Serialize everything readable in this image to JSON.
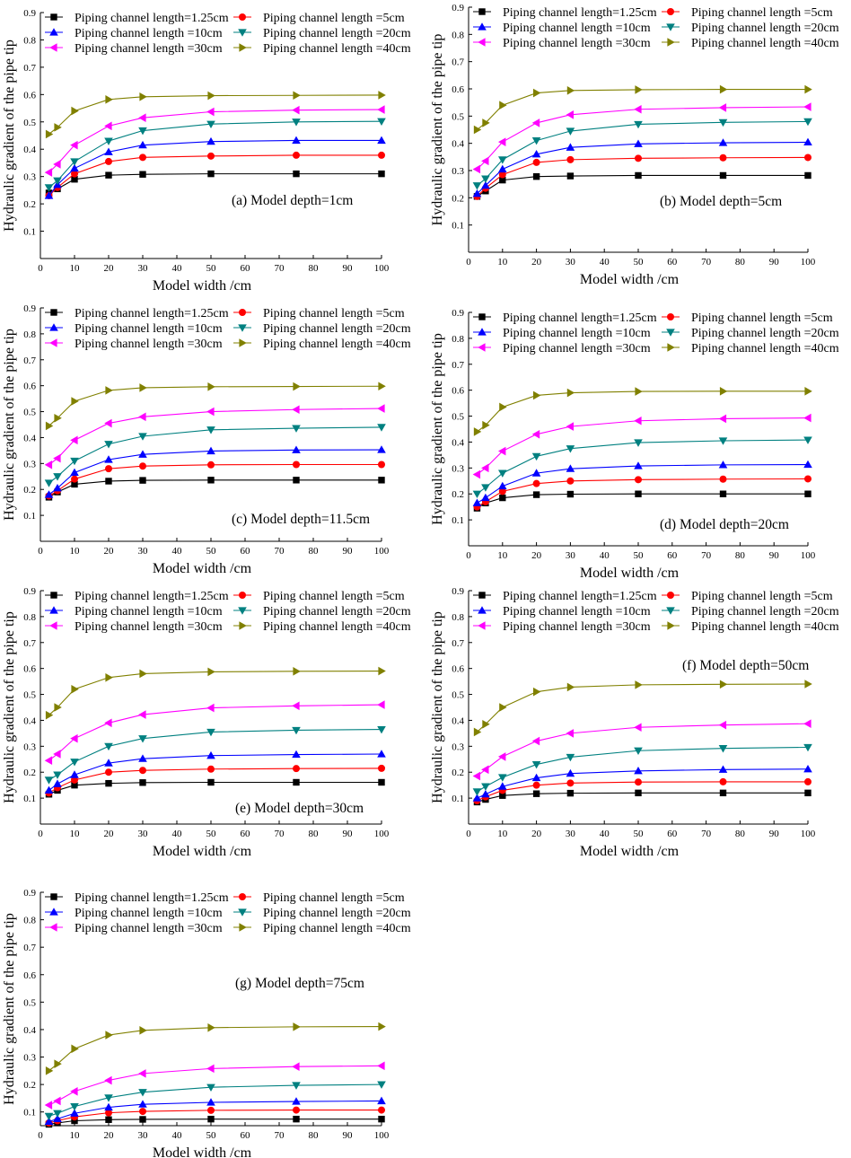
{
  "chart_data": [
    {
      "type": "line",
      "annotation": "(a) Model depth=1cm",
      "xlabel": "Model width /cm",
      "ylabel": "Hydraulic gradient of the pipe tip",
      "xlim": [
        0,
        100
      ],
      "ylim": [
        0,
        0.9
      ],
      "xticks": [
        "0",
        "10",
        "20",
        "30",
        "40",
        "50",
        "60",
        "70",
        "80",
        "90",
        "100"
      ],
      "yticks": [
        "0.1",
        "0.2",
        "0.3",
        "0.4",
        "0.5",
        "0.6",
        "0.7",
        "0.8",
        "0.9"
      ],
      "x": [
        2.5,
        5,
        10,
        20,
        30,
        50,
        75,
        100
      ],
      "series": [
        {
          "name": "Piping channel length=1.25cm",
          "values": [
            0.24,
            0.255,
            0.29,
            0.305,
            0.308,
            0.31,
            0.31,
            0.31
          ]
        },
        {
          "name": "Piping channel length =5cm",
          "values": [
            0.23,
            0.26,
            0.31,
            0.355,
            0.37,
            0.375,
            0.378,
            0.378
          ]
        },
        {
          "name": "Piping channel length =10cm",
          "values": [
            0.23,
            0.27,
            0.33,
            0.39,
            0.415,
            0.428,
            0.432,
            0.432
          ]
        },
        {
          "name": "Piping channel length =20cm",
          "values": [
            0.26,
            0.285,
            0.355,
            0.43,
            0.468,
            0.492,
            0.5,
            0.502
          ]
        },
        {
          "name": "Piping channel length =30cm",
          "values": [
            0.315,
            0.345,
            0.415,
            0.485,
            0.515,
            0.537,
            0.543,
            0.545
          ]
        },
        {
          "name": "Piping channel length =40cm",
          "values": [
            0.455,
            0.48,
            0.54,
            0.582,
            0.592,
            0.596,
            0.597,
            0.598
          ]
        }
      ]
    },
    {
      "type": "line",
      "annotation": "(b) Model depth=5cm",
      "xlabel": "Model width /cm",
      "ylabel": "Hydraulic gradient of the pipe tip",
      "xlim": [
        0,
        100
      ],
      "ylim": [
        0,
        0.9
      ],
      "xticks": [
        "0",
        "10",
        "20",
        "30",
        "40",
        "50",
        "60",
        "70",
        "80",
        "90",
        "100"
      ],
      "yticks": [
        "0.1",
        "0.2",
        "0.3",
        "0.4",
        "0.5",
        "0.6",
        "0.7",
        "0.8",
        "0.9"
      ],
      "x": [
        2.5,
        5,
        10,
        20,
        30,
        50,
        75,
        100
      ],
      "series": [
        {
          "name": "Piping channel length=1.25cm",
          "values": [
            0.205,
            0.225,
            0.265,
            0.278,
            0.28,
            0.282,
            0.282,
            0.282
          ]
        },
        {
          "name": "Piping channel length =5cm",
          "values": [
            0.205,
            0.235,
            0.285,
            0.33,
            0.34,
            0.345,
            0.347,
            0.348
          ]
        },
        {
          "name": "Piping channel length =10cm",
          "values": [
            0.215,
            0.245,
            0.305,
            0.36,
            0.385,
            0.398,
            0.402,
            0.404
          ]
        },
        {
          "name": "Piping channel length =20cm",
          "values": [
            0.245,
            0.27,
            0.34,
            0.41,
            0.445,
            0.47,
            0.477,
            0.48
          ]
        },
        {
          "name": "Piping channel length =30cm",
          "values": [
            0.305,
            0.335,
            0.405,
            0.475,
            0.505,
            0.525,
            0.531,
            0.534
          ]
        },
        {
          "name": "Piping channel length =40cm",
          "values": [
            0.45,
            0.475,
            0.54,
            0.585,
            0.594,
            0.597,
            0.598,
            0.598
          ]
        }
      ]
    },
    {
      "type": "line",
      "annotation": "(c) Model depth=11.5cm",
      "xlabel": "Model width /cm",
      "ylabel": "Hydraulic gradient of the pipe tip",
      "xlim": [
        0,
        100
      ],
      "ylim": [
        0,
        0.9
      ],
      "xticks": [
        "0",
        "10",
        "20",
        "30",
        "40",
        "50",
        "60",
        "70",
        "80",
        "90",
        "100"
      ],
      "yticks": [
        "0.1",
        "0.2",
        "0.3",
        "0.4",
        "0.5",
        "0.6",
        "0.7",
        "0.8",
        "0.9"
      ],
      "x": [
        2.5,
        5,
        10,
        20,
        30,
        50,
        75,
        100
      ],
      "series": [
        {
          "name": "Piping channel length=1.25cm",
          "values": [
            0.17,
            0.19,
            0.22,
            0.232,
            0.235,
            0.236,
            0.236,
            0.236
          ]
        },
        {
          "name": "Piping channel length =5cm",
          "values": [
            0.175,
            0.195,
            0.24,
            0.28,
            0.29,
            0.295,
            0.296,
            0.296
          ]
        },
        {
          "name": "Piping channel length =10cm",
          "values": [
            0.18,
            0.205,
            0.265,
            0.315,
            0.335,
            0.348,
            0.352,
            0.353
          ]
        },
        {
          "name": "Piping channel length =20cm",
          "values": [
            0.225,
            0.25,
            0.31,
            0.375,
            0.405,
            0.43,
            0.436,
            0.44
          ]
        },
        {
          "name": "Piping channel length =30cm",
          "values": [
            0.295,
            0.32,
            0.39,
            0.455,
            0.48,
            0.5,
            0.508,
            0.512
          ]
        },
        {
          "name": "Piping channel length =40cm",
          "values": [
            0.445,
            0.475,
            0.54,
            0.582,
            0.592,
            0.596,
            0.597,
            0.598
          ]
        }
      ]
    },
    {
      "type": "line",
      "annotation": "(d) Model depth=20cm",
      "xlabel": "Model width /cm",
      "ylabel": "Hydraulic gradient of the pipe tip",
      "xlim": [
        0,
        100
      ],
      "ylim": [
        0,
        0.9
      ],
      "xticks": [
        "0",
        "10",
        "20",
        "30",
        "40",
        "50",
        "60",
        "70",
        "80",
        "90",
        "100"
      ],
      "yticks": [
        "0.1",
        "0.2",
        "0.3",
        "0.4",
        "0.5",
        "0.6",
        "0.7",
        "0.8",
        "0.9"
      ],
      "x": [
        2.5,
        5,
        10,
        20,
        30,
        50,
        75,
        100
      ],
      "series": [
        {
          "name": "Piping channel length=1.25cm",
          "values": [
            0.145,
            0.165,
            0.185,
            0.197,
            0.199,
            0.2,
            0.2,
            0.2
          ]
        },
        {
          "name": "Piping channel length =5cm",
          "values": [
            0.15,
            0.17,
            0.21,
            0.24,
            0.25,
            0.255,
            0.257,
            0.258
          ]
        },
        {
          "name": "Piping channel length =10cm",
          "values": [
            0.165,
            0.185,
            0.23,
            0.28,
            0.297,
            0.308,
            0.312,
            0.313
          ]
        },
        {
          "name": "Piping channel length =20cm",
          "values": [
            0.2,
            0.225,
            0.28,
            0.345,
            0.375,
            0.398,
            0.405,
            0.408
          ]
        },
        {
          "name": "Piping channel length =30cm",
          "values": [
            0.275,
            0.3,
            0.365,
            0.43,
            0.46,
            0.482,
            0.49,
            0.493
          ]
        },
        {
          "name": "Piping channel length =40cm",
          "values": [
            0.44,
            0.465,
            0.535,
            0.58,
            0.59,
            0.595,
            0.596,
            0.596
          ]
        }
      ]
    },
    {
      "type": "line",
      "annotation": "(e) Model depth=30cm",
      "xlabel": "Model width /cm",
      "ylabel": "Hydraulic gradient of the pipe tip",
      "xlim": [
        0,
        100
      ],
      "ylim": [
        0,
        0.9
      ],
      "xticks": [
        "0",
        "10",
        "20",
        "30",
        "40",
        "50",
        "60",
        "70",
        "80",
        "90",
        "100"
      ],
      "yticks": [
        "0.1",
        "0.2",
        "0.3",
        "0.4",
        "0.5",
        "0.6",
        "0.7",
        "0.8",
        "0.9"
      ],
      "x": [
        2.5,
        5,
        10,
        20,
        30,
        50,
        75,
        100
      ],
      "series": [
        {
          "name": "Piping channel length=1.25cm",
          "values": [
            0.115,
            0.13,
            0.15,
            0.157,
            0.16,
            0.161,
            0.161,
            0.161
          ]
        },
        {
          "name": "Piping channel length =5cm",
          "values": [
            0.12,
            0.14,
            0.17,
            0.2,
            0.207,
            0.212,
            0.214,
            0.215
          ]
        },
        {
          "name": "Piping channel length =10cm",
          "values": [
            0.13,
            0.155,
            0.19,
            0.235,
            0.252,
            0.264,
            0.268,
            0.27
          ]
        },
        {
          "name": "Piping channel length =20cm",
          "values": [
            0.17,
            0.19,
            0.24,
            0.3,
            0.33,
            0.355,
            0.362,
            0.365
          ]
        },
        {
          "name": "Piping channel length =30cm",
          "values": [
            0.245,
            0.27,
            0.33,
            0.39,
            0.422,
            0.448,
            0.456,
            0.46
          ]
        },
        {
          "name": "Piping channel length =40cm",
          "values": [
            0.42,
            0.45,
            0.52,
            0.565,
            0.58,
            0.587,
            0.589,
            0.59
          ]
        }
      ]
    },
    {
      "type": "line",
      "annotation": "(f) Model depth=50cm",
      "xlabel": "Model width /cm",
      "ylabel": "Hydraulic gradient of the pipe tip",
      "xlim": [
        0,
        100
      ],
      "ylim": [
        0,
        0.9
      ],
      "xticks": [
        "0",
        "10",
        "20",
        "30",
        "40",
        "50",
        "60",
        "70",
        "80",
        "90",
        "100"
      ],
      "yticks": [
        "0.1",
        "0.2",
        "0.3",
        "0.4",
        "0.5",
        "0.6",
        "0.7",
        "0.8",
        "0.9"
      ],
      "x": [
        2.5,
        5,
        10,
        20,
        30,
        50,
        75,
        100
      ],
      "series": [
        {
          "name": "Piping channel length=1.25cm",
          "values": [
            0.085,
            0.095,
            0.11,
            0.117,
            0.119,
            0.12,
            0.12,
            0.12
          ]
        },
        {
          "name": "Piping channel length =5cm",
          "values": [
            0.09,
            0.105,
            0.13,
            0.15,
            0.158,
            0.162,
            0.163,
            0.163
          ]
        },
        {
          "name": "Piping channel length =10cm",
          "values": [
            0.1,
            0.115,
            0.145,
            0.178,
            0.195,
            0.205,
            0.21,
            0.212
          ]
        },
        {
          "name": "Piping channel length =20cm",
          "values": [
            0.125,
            0.145,
            0.18,
            0.23,
            0.258,
            0.283,
            0.292,
            0.296
          ]
        },
        {
          "name": "Piping channel length =30cm",
          "values": [
            0.185,
            0.21,
            0.26,
            0.32,
            0.35,
            0.373,
            0.382,
            0.387
          ]
        },
        {
          "name": "Piping channel length =40cm",
          "values": [
            0.355,
            0.385,
            0.45,
            0.51,
            0.528,
            0.537,
            0.539,
            0.54
          ]
        }
      ]
    },
    {
      "type": "line",
      "annotation": "(g) Model depth=75cm",
      "xlabel": "Model width /cm",
      "ylabel": "Hydraulic gradient of the pipe tip",
      "xlim": [
        0,
        100
      ],
      "ylim": [
        0.05,
        0.9
      ],
      "xticks": [
        "0",
        "10",
        "20",
        "30",
        "40",
        "50",
        "60",
        "70",
        "80",
        "90",
        "100"
      ],
      "yticks": [
        "0.1",
        "0.2",
        "0.3",
        "0.4",
        "0.5",
        "0.6",
        "0.7",
        "0.8",
        "0.9"
      ],
      "x": [
        2.5,
        5,
        10,
        20,
        30,
        50,
        75,
        100
      ],
      "series": [
        {
          "name": "Piping channel length=1.25cm",
          "values": [
            0.055,
            0.06,
            0.068,
            0.072,
            0.073,
            0.074,
            0.074,
            0.074
          ]
        },
        {
          "name": "Piping channel length =5cm",
          "values": [
            0.06,
            0.068,
            0.082,
            0.097,
            0.102,
            0.106,
            0.107,
            0.107
          ]
        },
        {
          "name": "Piping channel length =10cm",
          "values": [
            0.065,
            0.075,
            0.095,
            0.117,
            0.128,
            0.135,
            0.138,
            0.14
          ]
        },
        {
          "name": "Piping channel length =20cm",
          "values": [
            0.085,
            0.095,
            0.12,
            0.152,
            0.172,
            0.19,
            0.197,
            0.2
          ]
        },
        {
          "name": "Piping channel length =30cm",
          "values": [
            0.125,
            0.14,
            0.175,
            0.215,
            0.24,
            0.258,
            0.265,
            0.268
          ]
        },
        {
          "name": "Piping channel length =40cm",
          "values": [
            0.25,
            0.275,
            0.33,
            0.38,
            0.397,
            0.407,
            0.41,
            0.411
          ]
        }
      ]
    }
  ],
  "series_styles": [
    {
      "marker": "square",
      "color": "#000000"
    },
    {
      "marker": "circle",
      "color": "#ff0000"
    },
    {
      "marker": "triangle-up",
      "color": "#0000ff"
    },
    {
      "marker": "triangle-down",
      "color": "#008080"
    },
    {
      "marker": "triangle-left",
      "color": "#ff00ff"
    },
    {
      "marker": "triangle-right",
      "color": "#808000"
    }
  ]
}
